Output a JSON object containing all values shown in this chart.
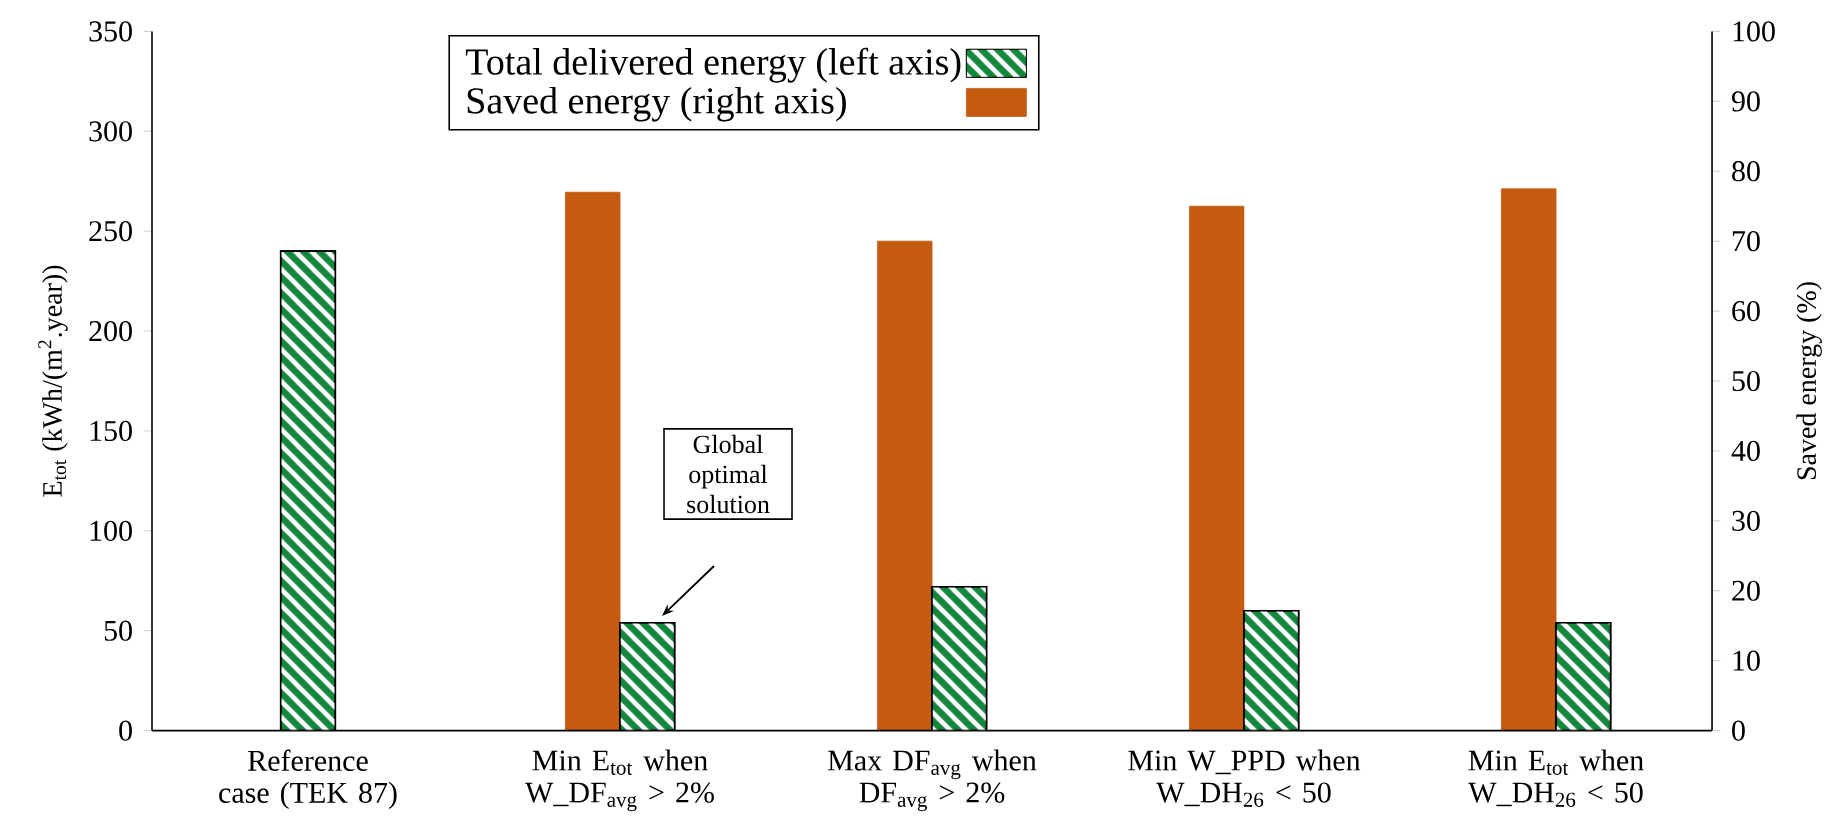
{
  "chart_data": {
    "type": "bar",
    "categories": [
      "Reference case (TEK 87)",
      "Min E$_{tot}$ when W_DF$_{avg}$ > 2%",
      "Max DF$_{avg}$ when DF$_{avg}$ > 2%",
      "Min W_PPD when W_DH$_{26}$ < 50",
      "Min E$_{tot}$ when W_DH$_{26}$ < 50"
    ],
    "series": [
      {
        "name": "Total delivered energy (left axis)",
        "color": "#12893a",
        "values": [
          240,
          54,
          72,
          60,
          54
        ]
      },
      {
        "name": "Saved energy (right axis)",
        "color": "#c55a11",
        "axis": "y2",
        "values": [
          null,
          77,
          70,
          75,
          77.5
        ]
      }
    ],
    "ylabel": "E$_{tot}$ (kWh/(m$^{2}$.year))",
    "y2label": "Saved energy (%)",
    "ylim": [
      0,
      350
    ],
    "yticks": [
      0,
      50,
      100,
      150,
      200,
      250,
      300,
      350
    ],
    "y2lim": [
      0,
      100
    ],
    "y2ticks": [
      0,
      10,
      20,
      30,
      40,
      50,
      60,
      70,
      80,
      90,
      100
    ],
    "legend": "top",
    "annotations": [
      "Global optimal solution"
    ]
  }
}
